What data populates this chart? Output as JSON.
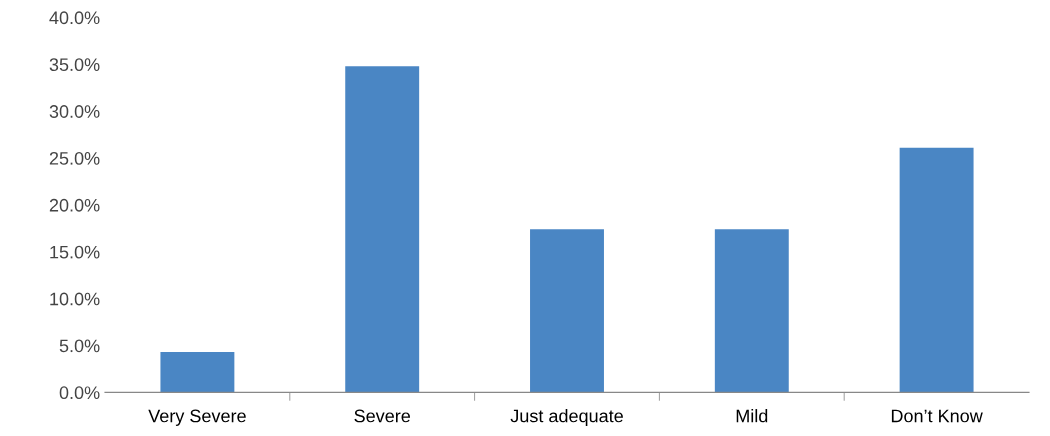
{
  "chart_data": {
    "type": "bar",
    "categories": [
      "Very Severe",
      "Severe",
      "Just adequate",
      "Mild",
      "Don’t Know"
    ],
    "values": [
      4.3,
      34.8,
      17.4,
      17.4,
      26.1
    ],
    "color": "#4a86c4",
    "ylim": [
      0,
      40
    ],
    "yticks": [
      {
        "value": 0,
        "label": "0.0%"
      },
      {
        "value": 5,
        "label": "5.0%"
      },
      {
        "value": 10,
        "label": "10.0%"
      },
      {
        "value": 15,
        "label": "15.0%"
      },
      {
        "value": 20,
        "label": "20.0%"
      },
      {
        "value": 25,
        "label": "25.0%"
      },
      {
        "value": 30,
        "label": "30.0%"
      },
      {
        "value": 35,
        "label": "35.0%"
      },
      {
        "value": 40,
        "label": "40.0%"
      }
    ],
    "grid": false,
    "legend": false
  }
}
